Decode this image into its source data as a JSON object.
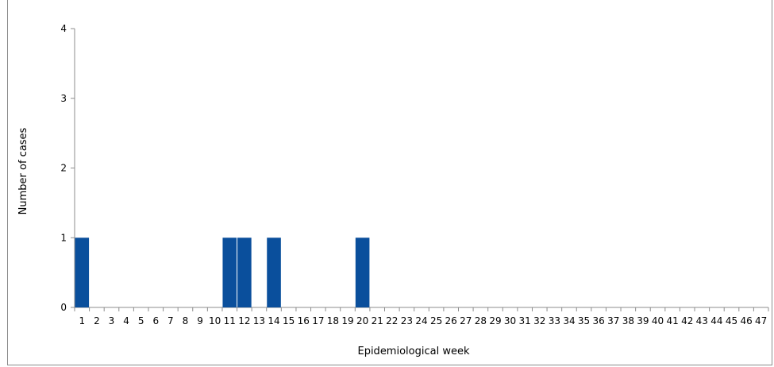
{
  "chart_data": {
    "type": "bar",
    "title": "",
    "xlabel": "Epidemiological week",
    "ylabel": "Number of cases",
    "categories": [
      "1",
      "2",
      "3",
      "4",
      "5",
      "6",
      "7",
      "8",
      "9",
      "10",
      "11",
      "12",
      "13",
      "14",
      "15",
      "16",
      "17",
      "18",
      "19",
      "20",
      "21",
      "22",
      "23",
      "24",
      "25",
      "26",
      "27",
      "28",
      "29",
      "30",
      "31",
      "32",
      "33",
      "34",
      "35",
      "36",
      "37",
      "38",
      "39",
      "40",
      "41",
      "42",
      "43",
      "44",
      "45",
      "46",
      "47"
    ],
    "values": [
      1,
      0,
      0,
      0,
      0,
      0,
      0,
      0,
      0,
      0,
      1,
      1,
      0,
      1,
      0,
      0,
      0,
      0,
      0,
      1,
      0,
      0,
      0,
      0,
      0,
      0,
      0,
      0,
      0,
      0,
      0,
      0,
      0,
      0,
      0,
      0,
      0,
      0,
      0,
      0,
      0,
      0,
      0,
      0,
      0,
      0,
      0
    ],
    "ylim": [
      0,
      4
    ],
    "yticks": [
      0,
      1,
      2,
      3,
      4
    ],
    "grid": false,
    "legend": "none",
    "bar_color": "#0a4f9c"
  }
}
